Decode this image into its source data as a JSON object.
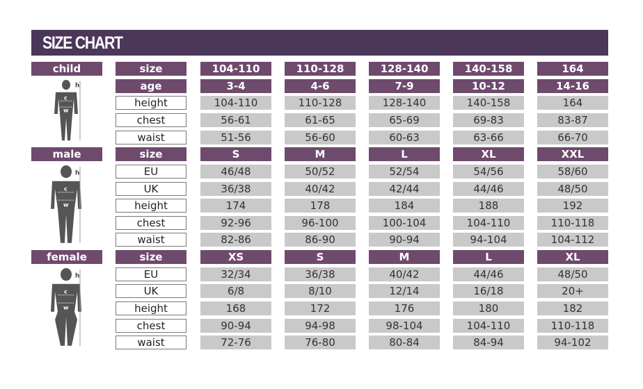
{
  "title": "SIZE CHART",
  "colors": {
    "header": "#4b3759",
    "label_bg": "#6e4a6d",
    "value_bg": "#c9c9c9"
  },
  "sections": [
    {
      "name": "child",
      "figure": "child-silhouette-icon",
      "marks": {
        "h": "h",
        "c": "c",
        "w": "w"
      },
      "rows": [
        {
          "label": "size",
          "header": true,
          "values": [
            "104-110",
            "110-128",
            "128-140",
            "140-158",
            "164"
          ]
        },
        {
          "label": "age",
          "header": true,
          "values": [
            "3-4",
            "4-6",
            "7-9",
            "10-12",
            "14-16"
          ]
        },
        {
          "label": "height",
          "values": [
            "104-110",
            "110-128",
            "128-140",
            "140-158",
            "164"
          ]
        },
        {
          "label": "chest",
          "values": [
            "56-61",
            "61-65",
            "65-69",
            "69-83",
            "83-87"
          ]
        },
        {
          "label": "waist",
          "values": [
            "51-56",
            "56-60",
            "60-63",
            "63-66",
            "66-70"
          ]
        }
      ]
    },
    {
      "name": "male",
      "figure": "male-silhouette-icon",
      "marks": {
        "h": "h",
        "c": "c",
        "w": "w"
      },
      "rows": [
        {
          "label": "size",
          "header": true,
          "values": [
            "S",
            "M",
            "L",
            "XL",
            "XXL"
          ]
        },
        {
          "label": "EU",
          "values": [
            "46/48",
            "50/52",
            "52/54",
            "54/56",
            "58/60"
          ]
        },
        {
          "label": "UK",
          "values": [
            "36/38",
            "40/42",
            "42/44",
            "44/46",
            "48/50"
          ]
        },
        {
          "label": "height",
          "values": [
            "174",
            "178",
            "184",
            "188",
            "192"
          ]
        },
        {
          "label": "chest",
          "values": [
            "92-96",
            "96-100",
            "100-104",
            "104-110",
            "110-118"
          ]
        },
        {
          "label": "waist",
          "values": [
            "82-86",
            "86-90",
            "90-94",
            "94-104",
            "104-112"
          ]
        }
      ]
    },
    {
      "name": "female",
      "figure": "female-silhouette-icon",
      "marks": {
        "h": "h",
        "c": "c",
        "w": "w"
      },
      "rows": [
        {
          "label": "size",
          "header": true,
          "values": [
            "XS",
            "S",
            "M",
            "L",
            "XL"
          ]
        },
        {
          "label": "EU",
          "values": [
            "32/34",
            "36/38",
            "40/42",
            "44/46",
            "48/50"
          ]
        },
        {
          "label": "UK",
          "values": [
            "6/8",
            "8/10",
            "12/14",
            "16/18",
            "20+"
          ]
        },
        {
          "label": "height",
          "values": [
            "168",
            "172",
            "176",
            "180",
            "182"
          ]
        },
        {
          "label": "chest",
          "values": [
            "90-94",
            "94-98",
            "98-104",
            "104-110",
            "110-118"
          ]
        },
        {
          "label": "waist",
          "values": [
            "72-76",
            "76-80",
            "80-84",
            "84-94",
            "94-102"
          ]
        }
      ]
    }
  ]
}
